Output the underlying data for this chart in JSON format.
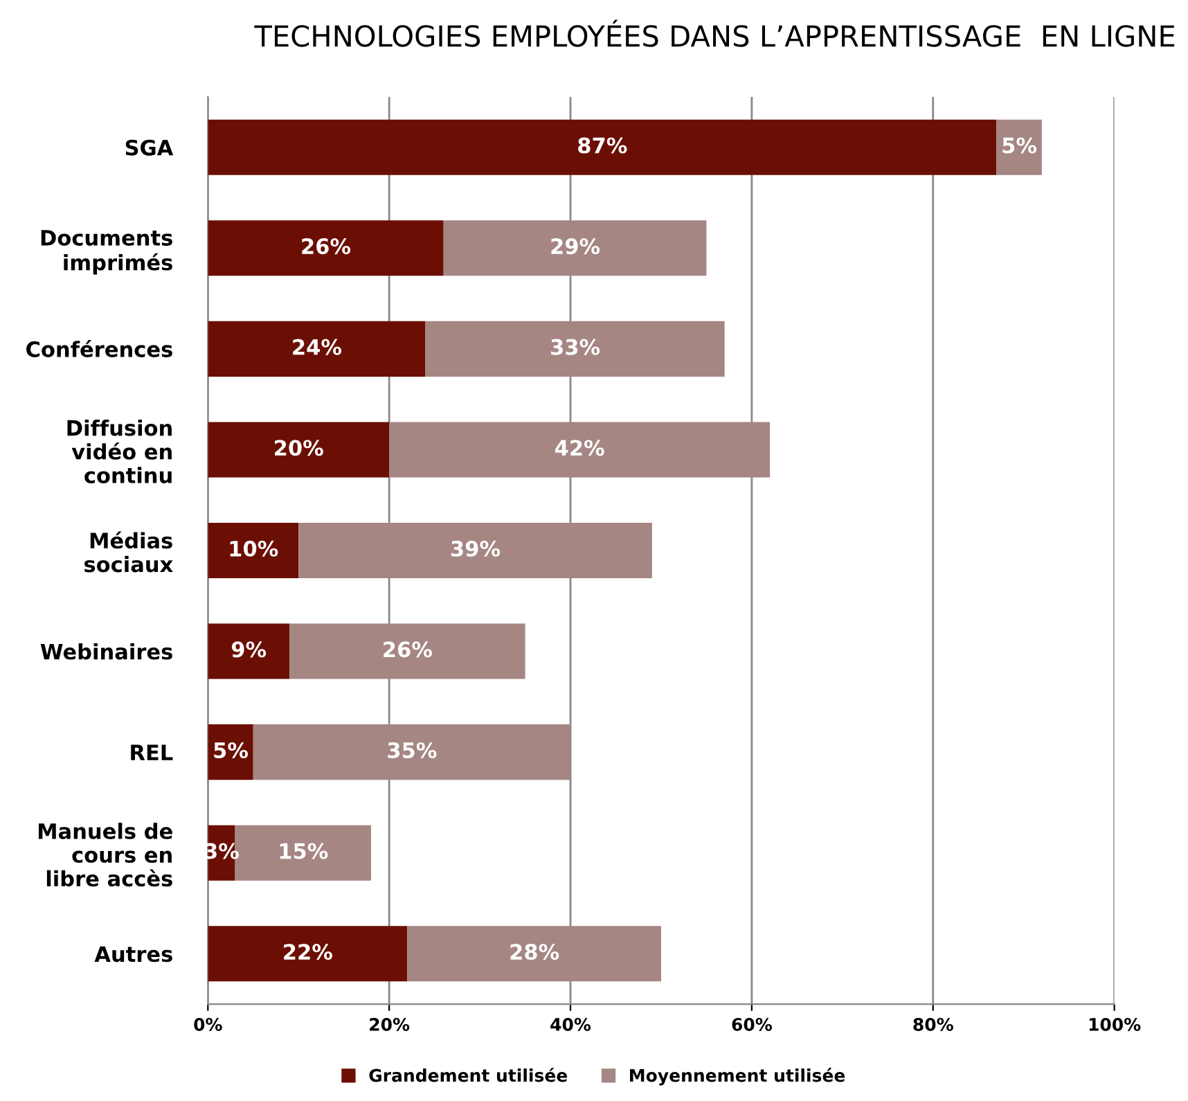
{
  "chart_data": {
    "type": "bar",
    "orientation": "horizontal",
    "stacked": true,
    "title": "TECHNOLOGIES EMPLOYÉES DANS L’APPRENTISSAGE  EN LIGNE",
    "categories": [
      "SGA",
      "Documents\nimprimés",
      "Conférences",
      "Diffusion\nvidéo en\ncontinu",
      "Médias\nsociaux",
      "Webinaires",
      "REL",
      "Manuels de\ncours en\nlibre accès",
      "Autres"
    ],
    "series": [
      {
        "name": "Grandement utilisée",
        "color": "#6b0f05",
        "values": [
          87,
          26,
          24,
          20,
          10,
          9,
          5,
          3,
          22
        ],
        "value_labels": [
          "87%",
          "26%",
          "24%",
          "20%",
          "10%",
          "9%",
          "5%",
          "3%",
          "22%"
        ]
      },
      {
        "name": "Moyennement utilisée",
        "color": "#a58683",
        "values": [
          5,
          29,
          33,
          42,
          39,
          26,
          35,
          15,
          28
        ],
        "value_labels": [
          "5%",
          "29%",
          "33%",
          "42%",
          "39%",
          "26%",
          "35%",
          "15%",
          "28%"
        ]
      }
    ],
    "xlim": [
      0,
      100
    ],
    "xticks": [
      {
        "value": 0,
        "label": "0%"
      },
      {
        "value": 20,
        "label": "20%"
      },
      {
        "value": 40,
        "label": "40%"
      },
      {
        "value": 60,
        "label": "60%"
      },
      {
        "value": 80,
        "label": "80%"
      },
      {
        "value": 100,
        "label": "100%"
      }
    ],
    "grid": "x",
    "legend": "bottom"
  }
}
